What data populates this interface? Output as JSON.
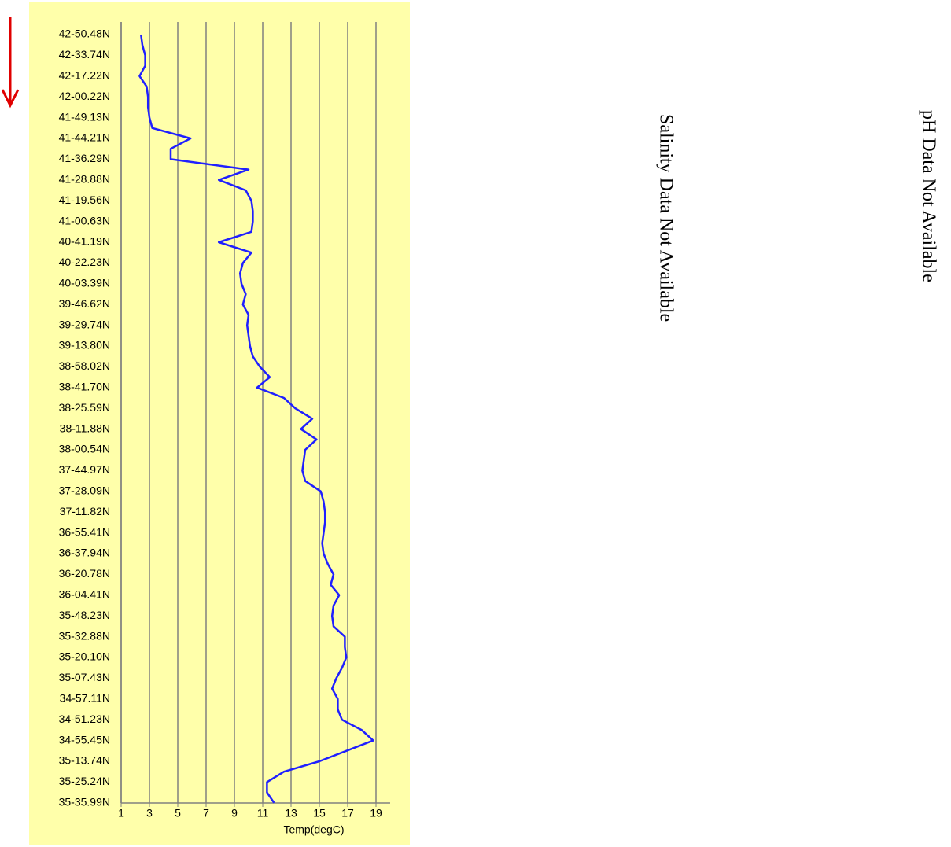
{
  "chart_data": {
    "type": "line",
    "x_label": "Temp(degC)",
    "xlim": [
      1,
      20
    ],
    "xticks": [
      1,
      3,
      5,
      7,
      9,
      11,
      13,
      15,
      17,
      19
    ],
    "grid": true,
    "color": "#1f1fff",
    "categories": [
      "42-50.48N",
      null,
      "42-33.74N",
      null,
      "42-17.22N",
      null,
      "42-00.22N",
      null,
      "41-49.13N",
      null,
      "41-44.21N",
      null,
      "41-36.29N",
      null,
      "41-28.88N",
      null,
      "41-19.56N",
      null,
      "41-00.63N",
      null,
      "40-41.19N",
      null,
      "40-22.23N",
      null,
      "40-03.39N",
      null,
      "39-46.62N",
      null,
      "39-29.74N",
      null,
      "39-13.80N",
      null,
      "38-58.02N",
      null,
      "38-41.70N",
      null,
      "38-25.59N",
      null,
      "38-11.88N",
      null,
      "38-00.54N",
      null,
      "37-44.97N",
      null,
      "37-28.09N",
      null,
      "37-11.82N",
      null,
      "36-55.41N",
      null,
      "36-37.94N",
      null,
      "36-20.78N",
      null,
      "36-04.41N",
      null,
      "35-48.23N",
      null,
      "35-32.88N",
      null,
      "35-20.10N",
      null,
      "35-07.43N",
      null,
      "34-57.11N",
      null,
      "34-51.23N",
      null,
      "34-55.45N",
      null,
      "35-13.74N",
      null,
      "35-25.24N",
      null,
      "35-35.99N"
    ],
    "values": [
      2.4,
      2.5,
      2.7,
      2.7,
      2.3,
      2.8,
      2.9,
      2.9,
      3.0,
      3.2,
      5.9,
      4.5,
      4.5,
      10.0,
      7.9,
      9.8,
      10.2,
      10.3,
      10.3,
      10.2,
      7.9,
      10.2,
      9.6,
      9.4,
      9.5,
      9.8,
      9.6,
      10.0,
      9.9,
      10.0,
      10.1,
      10.3,
      10.8,
      11.5,
      10.6,
      12.5,
      13.3,
      14.5,
      13.7,
      14.8,
      14.0,
      13.9,
      13.8,
      14.0,
      15.1,
      15.3,
      15.4,
      15.4,
      15.3,
      15.2,
      15.3,
      15.6,
      16.0,
      15.8,
      16.4,
      16.0,
      15.9,
      16.0,
      16.8,
      16.8,
      16.9,
      16.6,
      16.2,
      15.9,
      16.3,
      16.3,
      16.6,
      18.0,
      18.8,
      16.9,
      15.0,
      12.5,
      11.3,
      11.3,
      11.8
    ],
    "annotations": [
      "Salinity Data Not Available",
      "pH Data Not Available"
    ]
  }
}
